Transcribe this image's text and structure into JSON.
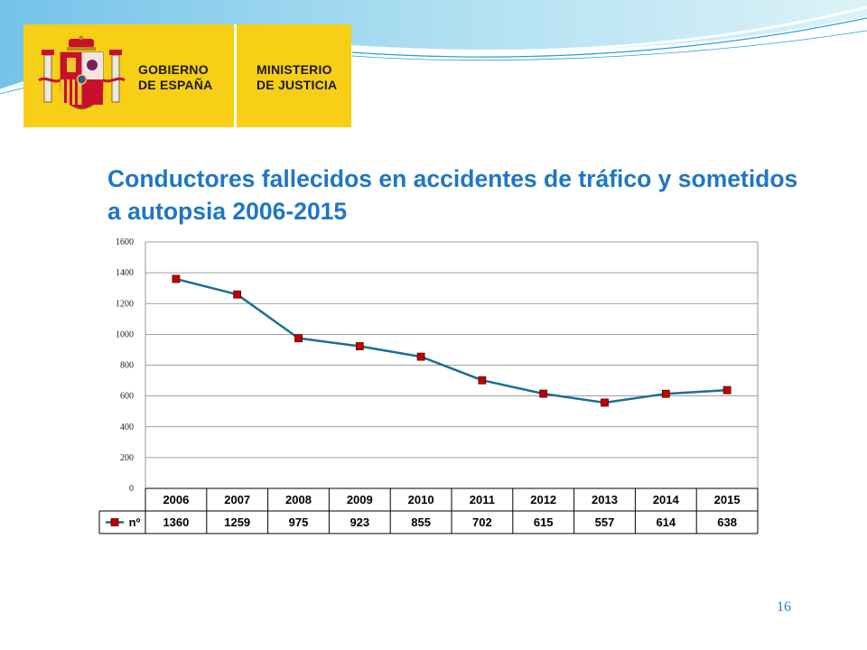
{
  "header": {
    "logo": {
      "line1": "GOBIERNO",
      "line2": "DE ESPAÑA",
      "line3": "MINISTERIO",
      "line4": "DE JUSTICIA"
    }
  },
  "slide": {
    "title": "Conductores fallecidos en accidentes de tráfico y sometidos a autopsia 2006-2015",
    "page_number": "16"
  },
  "colors": {
    "title": "#1f77c3",
    "line": "#1b6f94",
    "marker": "#c00000",
    "logo_bg": "#f6cf16"
  },
  "chart_data": {
    "type": "line",
    "title": "",
    "xlabel": "",
    "ylabel": "",
    "categories": [
      "2006",
      "2007",
      "2008",
      "2009",
      "2010",
      "2011",
      "2012",
      "2013",
      "2014",
      "2015"
    ],
    "series": [
      {
        "name": "nº",
        "values": [
          1360,
          1259,
          975,
          923,
          855,
          702,
          615,
          557,
          614,
          638
        ]
      }
    ],
    "ylim": [
      0,
      1600
    ],
    "yticks": [
      "0",
      "200",
      "400",
      "600",
      "800",
      "1000",
      "1200",
      "1400",
      "1600"
    ],
    "grid": true,
    "legend": "data-table"
  }
}
